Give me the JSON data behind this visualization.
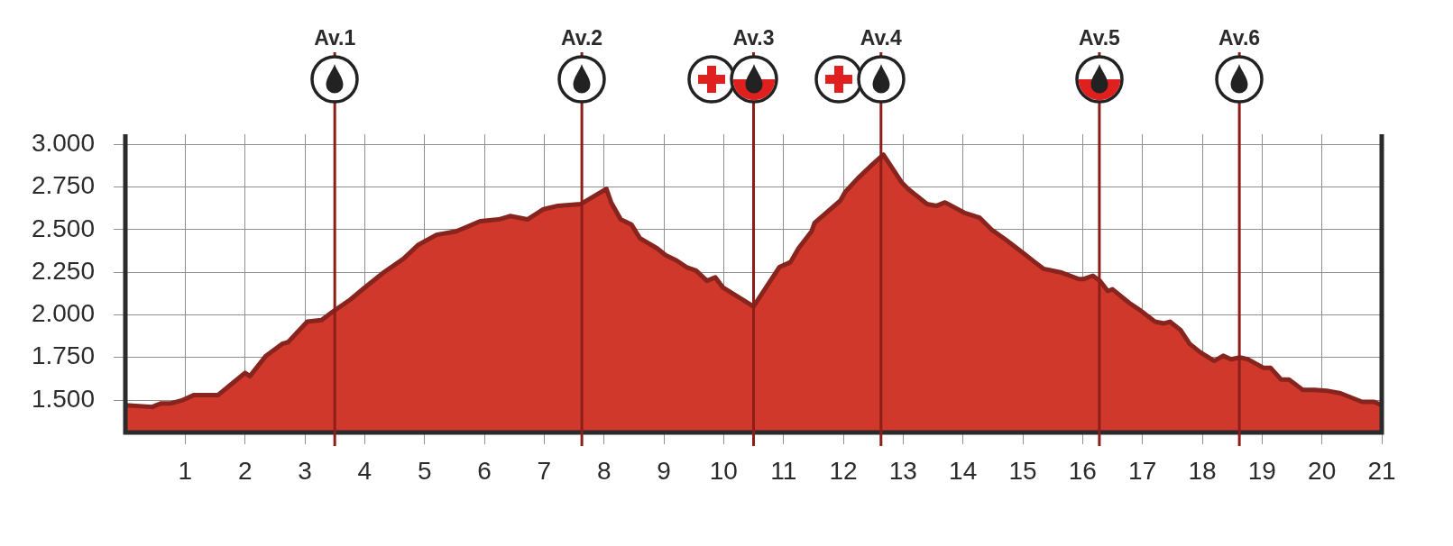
{
  "chart_data": {
    "type": "area",
    "x": [
      0,
      0.45,
      0.59,
      0.75,
      0.96,
      1.15,
      1.55,
      1.76,
      2.0,
      2.08,
      2.35,
      2.62,
      2.72,
      3.04,
      3.28,
      3.47,
      3.76,
      4.0,
      4.32,
      4.65,
      4.89,
      5.2,
      5.53,
      5.93,
      6.24,
      6.43,
      6.72,
      6.99,
      7.23,
      7.61,
      8.04,
      8.12,
      8.28,
      8.46,
      8.6,
      8.89,
      9.03,
      9.21,
      9.38,
      9.54,
      9.72,
      9.86,
      9.99,
      10.5,
      10.93,
      11.12,
      11.25,
      11.47,
      11.52,
      11.95,
      12.03,
      12.24,
      12.51,
      12.67,
      12.97,
      13.08,
      13.4,
      13.56,
      13.7,
      14.02,
      14.28,
      14.48,
      14.72,
      15.02,
      15.2,
      15.35,
      15.63,
      15.94,
      16.01,
      16.17,
      16.29,
      16.42,
      16.5,
      16.78,
      16.95,
      17.21,
      17.36,
      17.46,
      17.64,
      17.79,
      17.97,
      18.2,
      18.35,
      18.48,
      18.63,
      18.76,
      19.02,
      19.14,
      19.32,
      19.45,
      19.68,
      19.88,
      20.08,
      20.31,
      20.67,
      20.87,
      21
    ],
    "values": [
      1470,
      1460,
      1480,
      1480,
      1500,
      1530,
      1530,
      1590,
      1660,
      1640,
      1760,
      1830,
      1840,
      1960,
      1970,
      2020,
      2090,
      2160,
      2250,
      2330,
      2410,
      2470,
      2490,
      2550,
      2560,
      2580,
      2560,
      2620,
      2640,
      2650,
      2740,
      2660,
      2560,
      2530,
      2450,
      2390,
      2350,
      2320,
      2280,
      2260,
      2200,
      2220,
      2160,
      2050,
      2280,
      2310,
      2390,
      2490,
      2540,
      2670,
      2720,
      2800,
      2890,
      2940,
      2780,
      2740,
      2650,
      2640,
      2660,
      2600,
      2570,
      2500,
      2440,
      2360,
      2310,
      2270,
      2250,
      2210,
      2210,
      2230,
      2200,
      2140,
      2150,
      2070,
      2030,
      1960,
      1950,
      1960,
      1910,
      1830,
      1780,
      1730,
      1760,
      1740,
      1750,
      1740,
      1690,
      1690,
      1620,
      1620,
      1560,
      1560,
      1555,
      1540,
      1490,
      1490,
      1470
    ],
    "color": "#d0382c",
    "marker": "none",
    "xlim": [
      0,
      21
    ],
    "xticks": [
      1,
      2,
      3,
      4,
      5,
      6,
      7,
      8,
      9,
      10,
      11,
      12,
      13,
      14,
      15,
      16,
      17,
      18,
      19,
      20,
      21
    ],
    "ylim": [
      1310,
      3060
    ],
    "yticks": [
      {
        "value": 1500,
        "label": "1.500"
      },
      {
        "value": 1750,
        "label": "1.750"
      },
      {
        "value": 2000,
        "label": "2.000"
      },
      {
        "value": 2250,
        "label": "2.250"
      },
      {
        "value": 2500,
        "label": "2.500"
      },
      {
        "value": 2750,
        "label": "2.750"
      },
      {
        "value": 3000,
        "label": "3.000"
      }
    ],
    "grid": true,
    "ref_lines": [
      {
        "axis": "x",
        "value": 3.5,
        "label": "Av.1",
        "color": "#8c1d1a"
      },
      {
        "axis": "x",
        "value": 7.63,
        "label": "Av.2",
        "color": "#8c1d1a"
      },
      {
        "axis": "x",
        "value": 10.5,
        "label": "Av.3",
        "color": "#8c1d1a"
      },
      {
        "axis": "x",
        "value": 12.63,
        "label": "Av.4",
        "color": "#8c1d1a"
      },
      {
        "axis": "x",
        "value": 16.28,
        "label": "Av.5",
        "color": "#8c1d1a"
      },
      {
        "axis": "x",
        "value": 18.62,
        "label": "Av.6",
        "color": "#8c1d1a"
      }
    ]
  }
}
